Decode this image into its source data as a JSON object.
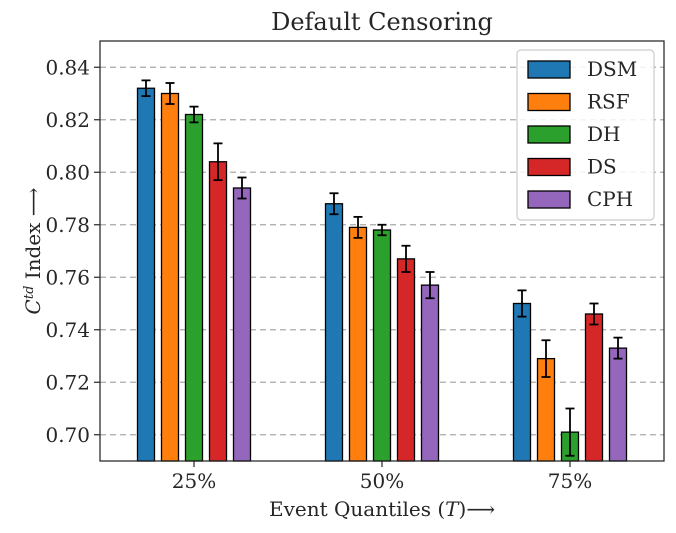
{
  "chart_data": {
    "type": "bar",
    "title": "Default Censoring",
    "xlabel_text": "Event Quantiles (",
    "xlabel_var": "T",
    "xlabel_tail": ")⟶",
    "ylabel_sym": "C",
    "ylabel_sup": "td",
    "ylabel_tail": " Index ⟶",
    "categories": [
      "25%",
      "50%",
      "75%"
    ],
    "ylim": [
      0.69,
      0.85
    ],
    "yticks": [
      0.7,
      0.72,
      0.74,
      0.76,
      0.78,
      0.8,
      0.82,
      0.84
    ],
    "ytick_labels": [
      "0.70",
      "0.72",
      "0.74",
      "0.76",
      "0.78",
      "0.80",
      "0.82",
      "0.84"
    ],
    "grid": "horizontal-dashed",
    "legend_position": "top-right",
    "series": [
      {
        "name": "DSM",
        "color": "#1f77b4",
        "values": [
          0.832,
          0.788,
          0.75
        ],
        "errors": [
          0.003,
          0.004,
          0.005
        ]
      },
      {
        "name": "RSF",
        "color": "#ff7f0e",
        "values": [
          0.83,
          0.779,
          0.729
        ],
        "errors": [
          0.004,
          0.004,
          0.007
        ]
      },
      {
        "name": "DH",
        "color": "#2ca02c",
        "values": [
          0.822,
          0.778,
          0.701
        ],
        "errors": [
          0.003,
          0.002,
          0.009
        ]
      },
      {
        "name": "DS",
        "color": "#d62728",
        "values": [
          0.804,
          0.767,
          0.746
        ],
        "errors": [
          0.007,
          0.005,
          0.004
        ]
      },
      {
        "name": "CPH",
        "color": "#9467bd",
        "values": [
          0.794,
          0.757,
          0.733
        ],
        "errors": [
          0.004,
          0.005,
          0.004
        ]
      }
    ]
  }
}
